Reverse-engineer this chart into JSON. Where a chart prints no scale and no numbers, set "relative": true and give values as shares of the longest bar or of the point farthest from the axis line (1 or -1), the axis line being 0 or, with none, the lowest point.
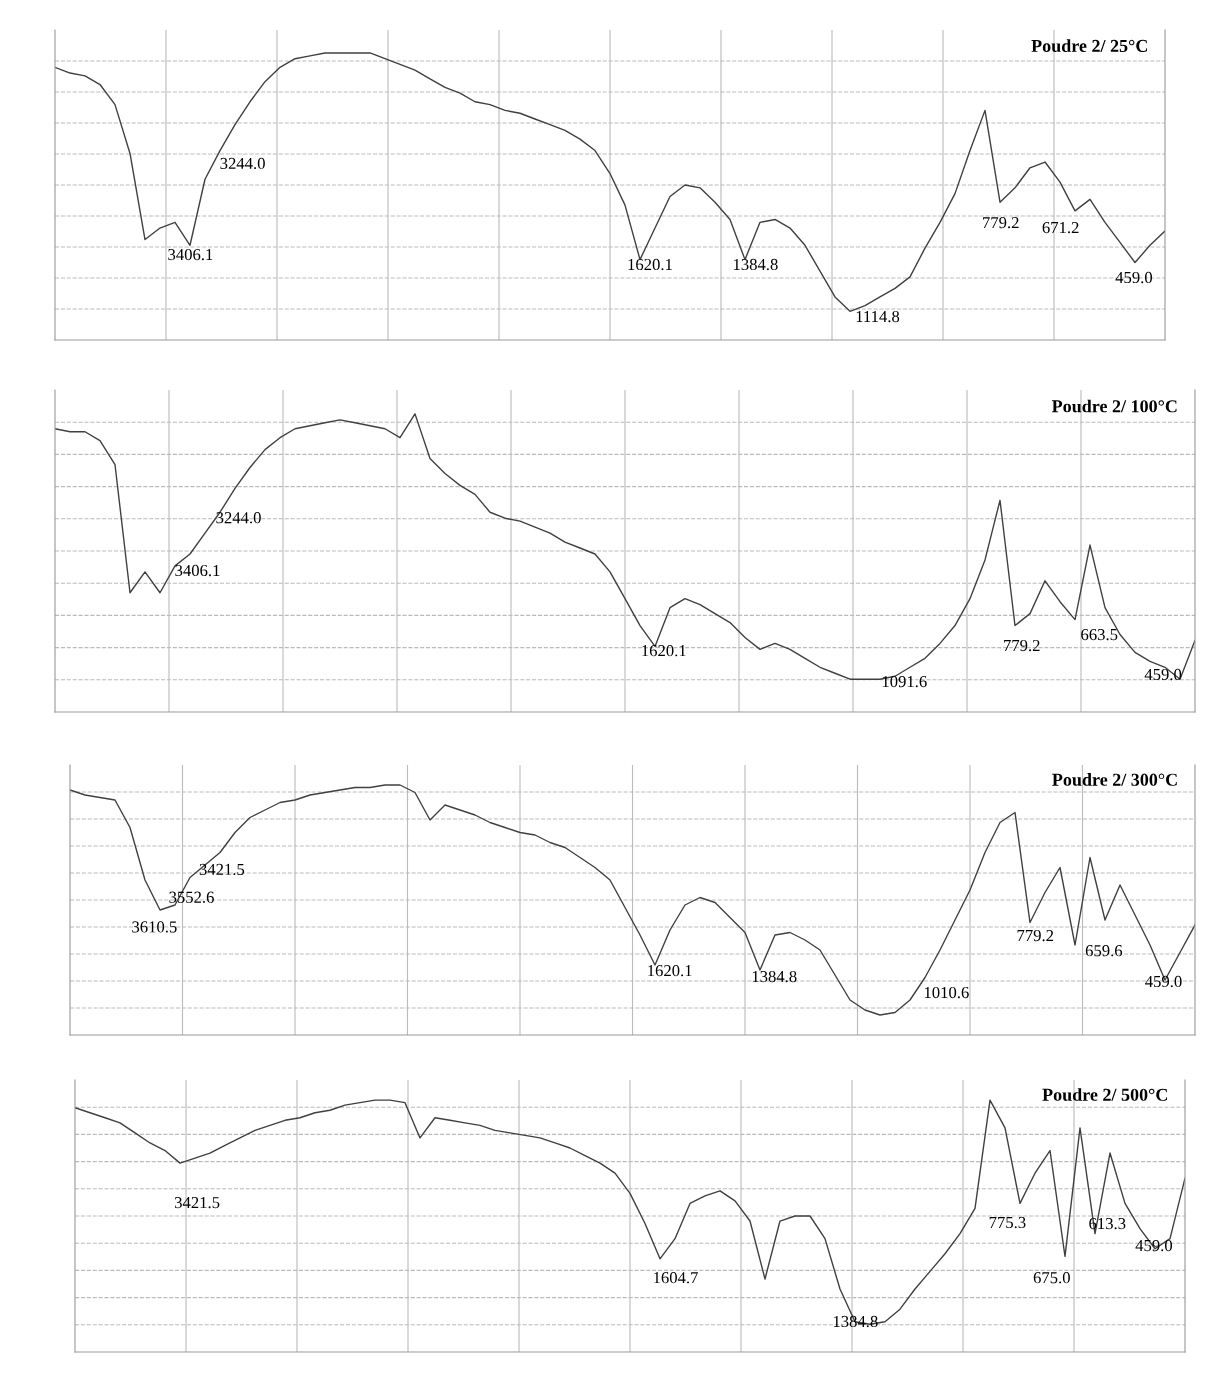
{
  "chart_data": [
    {
      "type": "line",
      "title": "Poudre 2/ 25°C",
      "relative": true,
      "grid": true,
      "line_style": "solid",
      "categories": [
        null,
        null,
        null,
        null,
        null,
        null,
        null,
        null,
        null,
        null,
        null,
        null,
        null,
        null,
        null,
        null,
        null,
        null,
        null,
        null,
        null,
        null,
        null,
        null,
        null,
        null,
        null,
        null,
        null,
        null,
        null,
        null,
        null,
        null,
        null,
        null,
        null,
        null,
        null,
        null,
        null,
        null,
        null,
        null,
        null,
        null,
        null,
        null,
        null,
        null,
        null,
        null,
        null,
        null,
        null,
        null,
        null,
        null,
        null,
        null,
        null,
        null,
        null,
        null,
        null,
        null,
        null,
        null,
        null,
        null,
        null,
        null,
        null,
        null,
        null
      ],
      "series": [
        {
          "color": "#404040",
          "values": [
            0.95,
            0.93,
            0.92,
            0.89,
            0.82,
            0.65,
            0.35,
            0.39,
            0.41,
            0.33,
            0.56,
            0.66,
            0.75,
            0.83,
            0.9,
            0.95,
            0.98,
            0.99,
            1.0,
            1.0,
            1.0,
            1.0,
            0.98,
            0.96,
            0.94,
            0.91,
            0.88,
            0.86,
            0.83,
            0.82,
            0.8,
            0.79,
            0.77,
            0.75,
            0.73,
            0.7,
            0.66,
            0.58,
            0.47,
            0.28,
            0.39,
            0.5,
            0.54,
            0.53,
            0.48,
            0.42,
            0.28,
            0.41,
            0.42,
            0.39,
            0.33,
            0.24,
            0.15,
            0.1,
            0.12,
            0.15,
            0.18,
            0.22,
            0.32,
            0.41,
            0.51,
            0.66,
            0.8,
            0.48,
            0.53,
            0.6,
            0.62,
            0.55,
            0.45,
            0.49,
            0.41,
            0.34,
            0.27,
            0.33,
            0.38
          ]
        }
      ],
      "annotations": [
        "3406.1",
        "3244.0",
        "1620.1",
        "1384.8",
        "1114.8",
        "779.2",
        "671.2",
        "459.0"
      ]
    },
    {
      "type": "line",
      "title": "Poudre 2/ 100°C",
      "relative": true,
      "grid": true,
      "line_style": "solid",
      "categories": [
        null,
        null,
        null,
        null,
        null,
        null,
        null,
        null,
        null,
        null,
        null,
        null,
        null,
        null,
        null,
        null,
        null,
        null,
        null,
        null,
        null,
        null,
        null,
        null,
        null,
        null,
        null,
        null,
        null,
        null,
        null,
        null,
        null,
        null,
        null,
        null,
        null,
        null,
        null,
        null,
        null,
        null,
        null,
        null,
        null,
        null,
        null,
        null,
        null,
        null,
        null,
        null,
        null,
        null,
        null,
        null,
        null,
        null,
        null,
        null,
        null,
        null,
        null,
        null,
        null,
        null,
        null,
        null,
        null,
        null,
        null,
        null,
        null,
        null,
        null,
        null,
        null
      ],
      "series": [
        {
          "color": "#404040",
          "values": [
            0.95,
            0.94,
            0.94,
            0.91,
            0.83,
            0.4,
            0.47,
            0.4,
            0.49,
            0.53,
            0.6,
            0.67,
            0.75,
            0.82,
            0.88,
            0.92,
            0.95,
            0.96,
            0.97,
            0.98,
            0.97,
            0.96,
            0.95,
            0.92,
            1.0,
            0.85,
            0.8,
            0.76,
            0.73,
            0.67,
            0.65,
            0.64,
            0.62,
            0.6,
            0.57,
            0.55,
            0.53,
            0.47,
            0.38,
            0.29,
            0.22,
            0.35,
            0.38,
            0.36,
            0.33,
            0.3,
            0.25,
            0.21,
            0.23,
            0.21,
            0.18,
            0.15,
            0.13,
            0.11,
            0.11,
            0.11,
            0.12,
            0.15,
            0.18,
            0.23,
            0.29,
            0.38,
            0.51,
            0.71,
            0.29,
            0.33,
            0.44,
            0.37,
            0.31,
            0.56,
            0.35,
            0.26,
            0.2,
            0.17,
            0.15,
            0.11,
            0.24
          ]
        }
      ],
      "annotations": [
        "3406.1",
        "3244.0",
        "1620.1",
        "1091.6",
        "779.2",
        "663.5",
        "459.0"
      ]
    },
    {
      "type": "line",
      "title": "Poudre 2/ 300°C",
      "relative": true,
      "grid": true,
      "line_style": "solid",
      "categories": [
        null,
        null,
        null,
        null,
        null,
        null,
        null,
        null,
        null,
        null,
        null,
        null,
        null,
        null,
        null,
        null,
        null,
        null,
        null,
        null,
        null,
        null,
        null,
        null,
        null,
        null,
        null,
        null,
        null,
        null,
        null,
        null,
        null,
        null,
        null,
        null,
        null,
        null,
        null,
        null,
        null,
        null,
        null,
        null,
        null,
        null,
        null,
        null,
        null,
        null,
        null,
        null,
        null,
        null,
        null,
        null,
        null,
        null,
        null,
        null,
        null,
        null,
        null,
        null,
        null,
        null,
        null,
        null,
        null,
        null,
        null,
        null,
        null,
        null,
        null,
        null
      ],
      "series": [
        {
          "color": "#404040",
          "values": [
            0.98,
            0.96,
            0.95,
            0.94,
            0.83,
            0.62,
            0.5,
            0.52,
            0.63,
            0.68,
            0.73,
            0.81,
            0.87,
            0.9,
            0.93,
            0.94,
            0.96,
            0.97,
            0.98,
            0.99,
            0.99,
            1.0,
            1.0,
            0.97,
            0.86,
            0.92,
            0.9,
            0.88,
            0.85,
            0.83,
            0.81,
            0.8,
            0.77,
            0.75,
            0.71,
            0.67,
            0.62,
            0.51,
            0.4,
            0.28,
            0.42,
            0.52,
            0.55,
            0.53,
            0.47,
            0.41,
            0.26,
            0.4,
            0.41,
            0.38,
            0.34,
            0.24,
            0.14,
            0.1,
            0.08,
            0.09,
            0.14,
            0.23,
            0.34,
            0.46,
            0.58,
            0.73,
            0.85,
            0.89,
            0.45,
            0.57,
            0.67,
            0.36,
            0.71,
            0.46,
            0.6,
            0.48,
            0.36,
            0.22,
            0.33,
            0.44
          ]
        }
      ],
      "annotations": [
        "3610.5",
        "3552.6",
        "3421.5",
        "1620.1",
        "1384.8",
        "1010.6",
        "779.2",
        "659.6",
        "459.0"
      ]
    },
    {
      "type": "line",
      "title": "Poudre 2/ 500°C",
      "relative": true,
      "grid": true,
      "line_style": "solid",
      "categories": [
        null,
        null,
        null,
        null,
        null,
        null,
        null,
        null,
        null,
        null,
        null,
        null,
        null,
        null,
        null,
        null,
        null,
        null,
        null,
        null,
        null,
        null,
        null,
        null,
        null,
        null,
        null,
        null,
        null,
        null,
        null,
        null,
        null,
        null,
        null,
        null,
        null,
        null,
        null,
        null,
        null,
        null,
        null,
        null,
        null,
        null,
        null,
        null,
        null,
        null,
        null,
        null,
        null,
        null,
        null,
        null,
        null,
        null,
        null,
        null,
        null,
        null,
        null,
        null,
        null,
        null,
        null,
        null,
        null,
        null,
        null,
        null,
        null,
        null,
        null
      ],
      "series": [
        {
          "color": "#404040",
          "values": [
            0.97,
            0.95,
            0.93,
            0.91,
            0.87,
            0.83,
            0.8,
            0.75,
            0.77,
            0.79,
            0.82,
            0.85,
            0.88,
            0.9,
            0.92,
            0.93,
            0.95,
            0.96,
            0.98,
            0.99,
            1.0,
            1.0,
            0.99,
            0.85,
            0.93,
            0.92,
            0.91,
            0.9,
            0.88,
            0.87,
            0.86,
            0.85,
            0.83,
            0.81,
            0.78,
            0.75,
            0.71,
            0.63,
            0.51,
            0.37,
            0.45,
            0.59,
            0.62,
            0.64,
            0.6,
            0.52,
            0.29,
            0.52,
            0.54,
            0.54,
            0.45,
            0.25,
            0.12,
            0.11,
            0.12,
            0.17,
            0.25,
            0.32,
            0.39,
            0.47,
            0.57,
            1.0,
            0.89,
            0.59,
            0.71,
            0.8,
            0.38,
            0.89,
            0.47,
            0.79,
            0.59,
            0.49,
            0.41,
            0.45,
            0.69
          ]
        }
      ],
      "annotations": [
        "3421.5",
        "1604.7",
        "1384.8",
        "775.3",
        "675.0",
        "613.3",
        "459.0"
      ]
    }
  ]
}
